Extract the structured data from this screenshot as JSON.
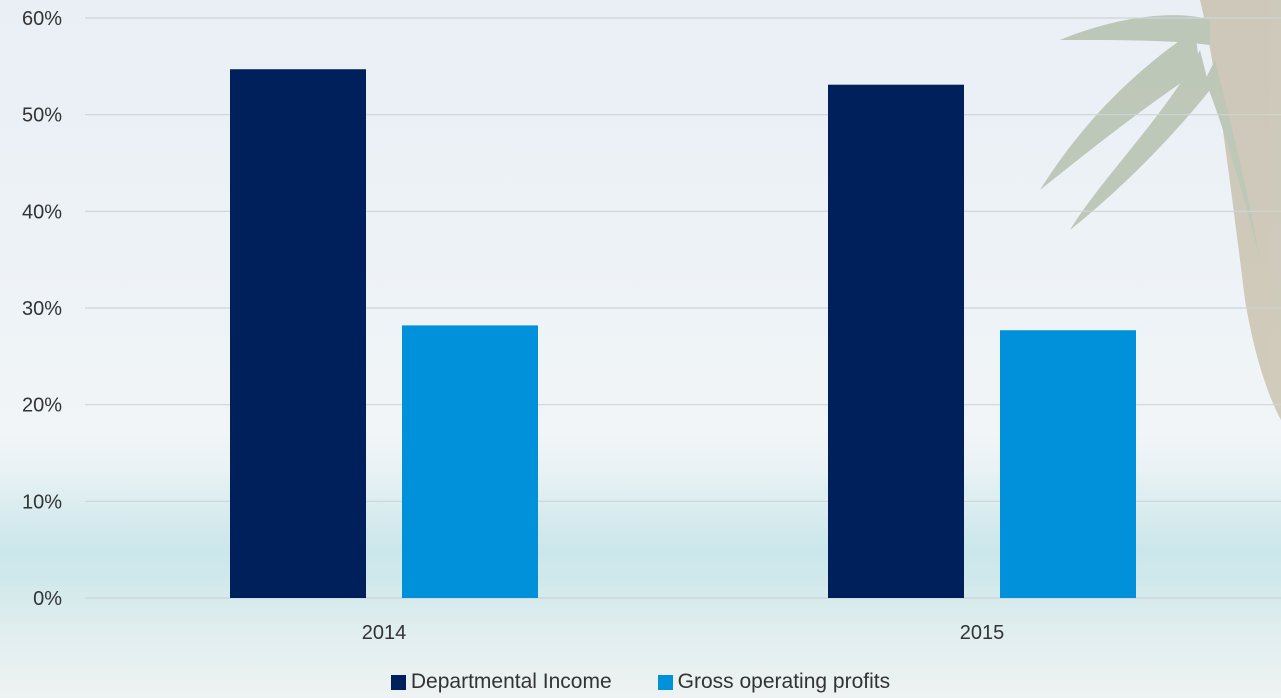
{
  "chart_data": {
    "type": "bar",
    "categories": [
      "2014",
      "2015"
    ],
    "series": [
      {
        "name": "Departmental Income",
        "values": [
          54.7,
          53.1
        ],
        "color": "#00205b"
      },
      {
        "name": "Gross operating profits",
        "values": [
          28.2,
          27.7
        ],
        "color": "#0091da"
      }
    ],
    "y_ticks": [
      "0%",
      "10%",
      "20%",
      "30%",
      "40%",
      "50%",
      "60%"
    ],
    "ylim": [
      0,
      60
    ],
    "grid": true,
    "legend_position": "bottom"
  }
}
